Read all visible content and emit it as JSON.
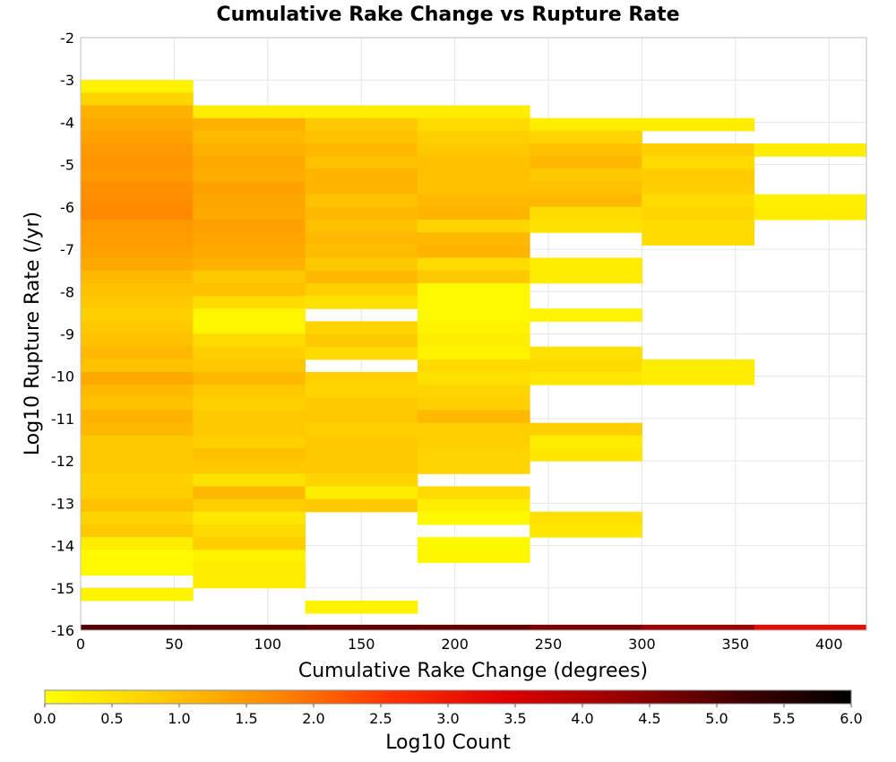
{
  "chart_data": {
    "type": "heatmap",
    "title": "Cumulative Rake Change vs Rupture Rate",
    "xlabel": "Cumulative Rake Change (degrees)",
    "ylabel": "Log10 Rupture Rate (/yr)",
    "xlim": [
      0,
      420
    ],
    "ylim": [
      -16,
      -2
    ],
    "x_ticks": [
      0,
      50,
      100,
      150,
      200,
      250,
      300,
      350,
      400
    ],
    "y_ticks": [
      -2,
      -3,
      -4,
      -5,
      -6,
      -7,
      -8,
      -9,
      -10,
      -11,
      -12,
      -13,
      -14,
      -15,
      -16
    ],
    "grid": true,
    "x_bin_width": 60,
    "y_bin_height": 0.3,
    "colorbar": {
      "label": "Log10 Count",
      "range": [
        0,
        6
      ],
      "ticks": [
        "0.0",
        "0.5",
        "1.0",
        "1.5",
        "2.0",
        "2.5",
        "3.0",
        "3.5",
        "4.0",
        "4.5",
        "5.0",
        "5.5",
        "6.0"
      ],
      "colors": [
        "#ffff00",
        "#ffcc00",
        "#ff8800",
        "#ff3300",
        "#dd0000",
        "#990000",
        "#440000",
        "#000000"
      ]
    },
    "bottom_strip": [
      {
        "x0": 0,
        "x1": 60,
        "value": 5.0
      },
      {
        "x0": 60,
        "x1": 120,
        "value": 5.0
      },
      {
        "x0": 120,
        "x1": 180,
        "value": 4.9
      },
      {
        "x0": 180,
        "x1": 240,
        "value": 4.8
      },
      {
        "x0": 240,
        "x1": 300,
        "value": 4.6
      },
      {
        "x0": 300,
        "x1": 360,
        "value": 4.3
      },
      {
        "x0": 360,
        "x1": 420,
        "value": 3.2
      }
    ],
    "columns": [
      {
        "x0": 0,
        "x1": 60,
        "bins": [
          [
            -3.0,
            0.2
          ],
          [
            -3.3,
            0.7
          ],
          [
            -3.6,
            1.2
          ],
          [
            -3.9,
            1.3
          ],
          [
            -4.2,
            1.4
          ],
          [
            -4.5,
            1.5
          ],
          [
            -4.8,
            1.55
          ],
          [
            -5.1,
            1.5
          ],
          [
            -5.4,
            1.6
          ],
          [
            -5.7,
            1.65
          ],
          [
            -6.0,
            1.7
          ],
          [
            -6.3,
            1.5
          ],
          [
            -6.6,
            1.45
          ],
          [
            -6.9,
            1.4
          ],
          [
            -7.2,
            1.3
          ],
          [
            -7.5,
            1.1
          ],
          [
            -7.8,
            1.0
          ],
          [
            -8.1,
            0.9
          ],
          [
            -8.4,
            0.8
          ],
          [
            -8.7,
            0.9
          ],
          [
            -9.0,
            1.0
          ],
          [
            -9.3,
            1.1
          ],
          [
            -9.6,
            1.0
          ],
          [
            -9.9,
            1.3
          ],
          [
            -10.2,
            1.1
          ],
          [
            -10.5,
            1.0
          ],
          [
            -10.8,
            1.2
          ],
          [
            -11.1,
            1.1
          ],
          [
            -11.4,
            0.9
          ],
          [
            -11.7,
            0.9
          ],
          [
            -12.0,
            0.9
          ],
          [
            -12.3,
            0.8
          ],
          [
            -12.6,
            0.8
          ],
          [
            -12.9,
            1.0
          ],
          [
            -13.2,
            0.7
          ],
          [
            -13.5,
            0.9
          ],
          [
            -13.8,
            0.3
          ],
          [
            -14.1,
            0.1
          ],
          [
            -14.4,
            0.1
          ],
          [
            -15.0,
            0.2
          ]
        ]
      },
      {
        "x0": 60,
        "x1": 120,
        "bins": [
          [
            -3.6,
            0.3
          ],
          [
            -3.9,
            1.2
          ],
          [
            -4.2,
            1.1
          ],
          [
            -4.5,
            1.2
          ],
          [
            -4.8,
            1.3
          ],
          [
            -5.1,
            1.25
          ],
          [
            -5.4,
            1.4
          ],
          [
            -5.7,
            1.35
          ],
          [
            -6.0,
            1.3
          ],
          [
            -6.3,
            1.4
          ],
          [
            -6.6,
            1.35
          ],
          [
            -6.9,
            1.3
          ],
          [
            -7.2,
            1.2
          ],
          [
            -7.5,
            0.9
          ],
          [
            -7.8,
            1.0
          ],
          [
            -8.1,
            0.6
          ],
          [
            -8.4,
            0.15
          ],
          [
            -8.7,
            0.15
          ],
          [
            -9.0,
            0.6
          ],
          [
            -9.3,
            0.8
          ],
          [
            -9.6,
            0.9
          ],
          [
            -9.9,
            1.1
          ],
          [
            -10.2,
            0.9
          ],
          [
            -10.5,
            0.8
          ],
          [
            -10.8,
            0.9
          ],
          [
            -11.1,
            0.9
          ],
          [
            -11.4,
            0.8
          ],
          [
            -11.7,
            1.0
          ],
          [
            -12.0,
            0.9
          ],
          [
            -12.3,
            0.5
          ],
          [
            -12.6,
            1.1
          ],
          [
            -12.9,
            0.8
          ],
          [
            -13.2,
            0.4
          ],
          [
            -13.5,
            0.6
          ],
          [
            -13.8,
            0.8
          ],
          [
            -14.1,
            0.2
          ],
          [
            -14.4,
            0.3
          ],
          [
            -14.7,
            0.3
          ]
        ]
      },
      {
        "x0": 120,
        "x1": 180,
        "bins": [
          [
            -3.6,
            0.3
          ],
          [
            -3.9,
            0.9
          ],
          [
            -4.2,
            1.0
          ],
          [
            -4.5,
            1.1
          ],
          [
            -4.8,
            1.0
          ],
          [
            -5.1,
            1.15
          ],
          [
            -5.4,
            1.15
          ],
          [
            -5.7,
            1.0
          ],
          [
            -6.0,
            1.1
          ],
          [
            -6.3,
            1.0
          ],
          [
            -6.6,
            1.1
          ],
          [
            -6.9,
            1.05
          ],
          [
            -7.2,
            0.9
          ],
          [
            -7.5,
            1.1
          ],
          [
            -7.8,
            0.8
          ],
          [
            -8.1,
            0.5
          ],
          [
            -8.7,
            0.7
          ],
          [
            -9.0,
            0.9
          ],
          [
            -9.3,
            0.6
          ],
          [
            -9.9,
            0.8
          ],
          [
            -10.2,
            0.7
          ],
          [
            -10.5,
            0.9
          ],
          [
            -10.8,
            0.9
          ],
          [
            -11.1,
            0.8
          ],
          [
            -11.4,
            0.9
          ],
          [
            -11.7,
            0.9
          ],
          [
            -12.0,
            0.9
          ],
          [
            -12.3,
            0.7
          ],
          [
            -12.6,
            0.3
          ],
          [
            -12.9,
            0.9
          ],
          [
            -15.3,
            0.2
          ]
        ]
      },
      {
        "x0": 180,
        "x1": 240,
        "bins": [
          [
            -3.6,
            0.3
          ],
          [
            -3.9,
            0.6
          ],
          [
            -4.2,
            0.8
          ],
          [
            -4.5,
            0.9
          ],
          [
            -4.8,
            1.0
          ],
          [
            -5.1,
            1.0
          ],
          [
            -5.4,
            1.0
          ],
          [
            -5.7,
            1.1
          ],
          [
            -6.0,
            1.15
          ],
          [
            -6.3,
            0.7
          ],
          [
            -6.6,
            1.1
          ],
          [
            -6.9,
            1.15
          ],
          [
            -7.2,
            0.6
          ],
          [
            -7.5,
            0.9
          ],
          [
            -7.8,
            0.1
          ],
          [
            -8.1,
            0.1
          ],
          [
            -8.4,
            0.1
          ],
          [
            -8.7,
            0.2
          ],
          [
            -9.0,
            0.3
          ],
          [
            -9.3,
            0.2
          ],
          [
            -9.6,
            0.6
          ],
          [
            -9.9,
            0.5
          ],
          [
            -10.2,
            0.7
          ],
          [
            -10.5,
            0.8
          ],
          [
            -10.8,
            1.1
          ],
          [
            -11.1,
            0.8
          ],
          [
            -11.4,
            0.8
          ],
          [
            -11.7,
            0.7
          ],
          [
            -12.0,
            0.7
          ],
          [
            -12.6,
            0.6
          ],
          [
            -12.9,
            0.3
          ],
          [
            -13.2,
            0.1
          ],
          [
            -13.8,
            0.1
          ],
          [
            -14.1,
            0.15
          ]
        ]
      },
      {
        "x0": 240,
        "x1": 300,
        "bins": [
          [
            -3.9,
            0.3
          ],
          [
            -4.2,
            0.7
          ],
          [
            -4.5,
            1.0
          ],
          [
            -4.8,
            1.1
          ],
          [
            -5.1,
            0.9
          ],
          [
            -5.4,
            1.0
          ],
          [
            -5.7,
            1.1
          ],
          [
            -6.0,
            0.6
          ],
          [
            -6.3,
            0.5
          ],
          [
            -7.2,
            0.3
          ],
          [
            -7.5,
            0.3
          ],
          [
            -8.4,
            0.2
          ],
          [
            -9.3,
            0.5
          ],
          [
            -9.6,
            0.6
          ],
          [
            -9.9,
            0.4
          ],
          [
            -11.1,
            0.8
          ],
          [
            -11.4,
            0.3
          ],
          [
            -11.7,
            0.4
          ],
          [
            -13.2,
            0.5
          ],
          [
            -13.5,
            0.4
          ]
        ]
      },
      {
        "x0": 300,
        "x1": 360,
        "bins": [
          [
            -3.9,
            0.3
          ],
          [
            -4.5,
            0.8
          ],
          [
            -4.8,
            0.6
          ],
          [
            -5.1,
            0.85
          ],
          [
            -5.4,
            0.8
          ],
          [
            -5.7,
            0.6
          ],
          [
            -6.0,
            0.7
          ],
          [
            -6.3,
            0.6
          ],
          [
            -6.6,
            0.6
          ],
          [
            -9.6,
            0.3
          ],
          [
            -9.9,
            0.3
          ]
        ]
      },
      {
        "x0": 360,
        "x1": 420,
        "bins": [
          [
            -4.5,
            0.3
          ],
          [
            -5.7,
            0.25
          ],
          [
            -6.0,
            0.3
          ]
        ]
      }
    ]
  }
}
